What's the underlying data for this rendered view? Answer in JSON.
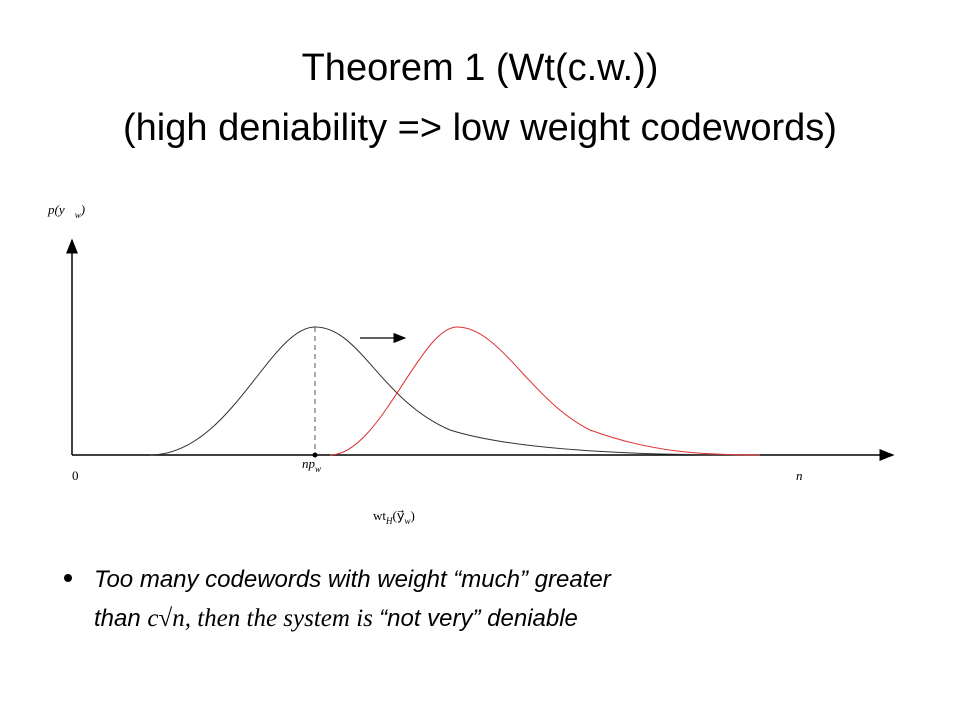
{
  "header": {
    "title": "Theorem 1 (Wt(c.w.))",
    "subtitle": "(high deniability => low weight codewords)"
  },
  "figure": {
    "y_axis_label": {
      "main": "p(y⃗",
      "sub": "w",
      "close": ")"
    },
    "origin_label": "0",
    "mean_label": {
      "main": "np",
      "sub": "w"
    },
    "x_end_label": "n",
    "x_axis_label": {
      "main": "wt",
      "sub": "H",
      "open": "(y⃗",
      "sub2": "w",
      "close": ")"
    }
  },
  "bullet": {
    "text1": "Too many codewords with weight “much” greater",
    "text2": "than ",
    "math": "c√n, then the system is ",
    "text3": "“not very” deniable"
  }
}
